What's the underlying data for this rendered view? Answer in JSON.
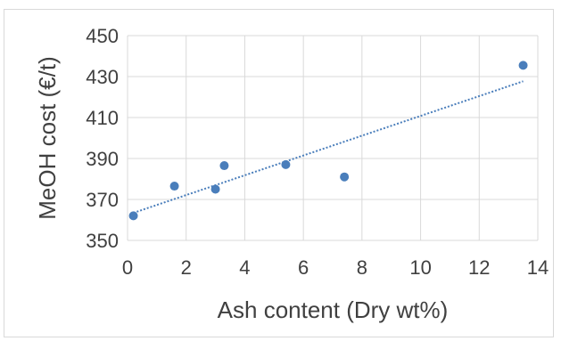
{
  "chart_data": {
    "type": "scatter",
    "title": "",
    "xlabel": "Ash content (Dry wt%)",
    "ylabel": "MeOH cost (€/t)",
    "xlim": [
      0,
      14
    ],
    "ylim": [
      350,
      450
    ],
    "xticks": [
      "0",
      "2",
      "4",
      "6",
      "8",
      "10",
      "12",
      "14"
    ],
    "yticks": [
      "350",
      "370",
      "390",
      "410",
      "430",
      "450"
    ],
    "grid": true,
    "legend": "none",
    "series": [
      {
        "points": [
          {
            "x": 0.2,
            "y": 362
          },
          {
            "x": 1.6,
            "y": 376.5
          },
          {
            "x": 3.0,
            "y": 375
          },
          {
            "x": 3.3,
            "y": 386.5
          },
          {
            "x": 5.4,
            "y": 387
          },
          {
            "x": 7.4,
            "y": 381
          },
          {
            "x": 13.5,
            "y": 435.5
          }
        ],
        "color": "#4a7ebb"
      }
    ],
    "trendline": {
      "type": "linear",
      "style": "dotted",
      "color": "#4a7ebb",
      "x_range": [
        0.2,
        13.5
      ]
    }
  }
}
